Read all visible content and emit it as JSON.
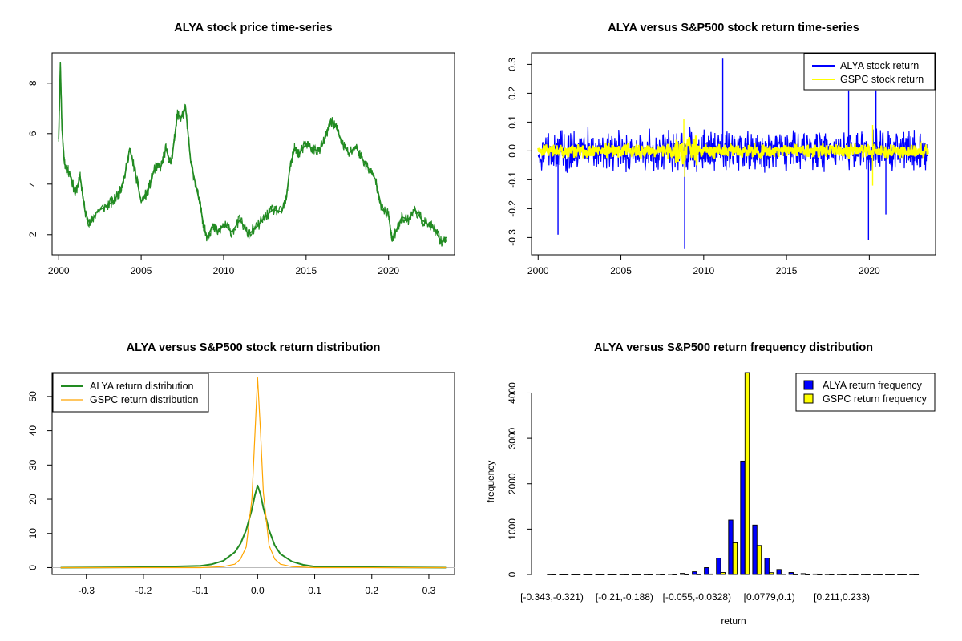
{
  "chart_data": [
    {
      "type": "line",
      "title": "ALYA stock price time-series",
      "xlabel": "",
      "ylabel": "",
      "xlim": [
        1999.6,
        2024.0
      ],
      "ylim": [
        1.2,
        9.2
      ],
      "x_ticks": [
        "2000",
        "2005",
        "2010",
        "2015",
        "2020"
      ],
      "y_ticks": [
        "2",
        "4",
        "6",
        "8"
      ],
      "series": [
        {
          "color": "#228B22",
          "x": [
            2000.0,
            2000.1,
            2000.2,
            2000.35,
            2000.5,
            2000.7,
            2001.0,
            2001.3,
            2001.6,
            2001.9,
            2002.3,
            2002.8,
            2003.3,
            2003.7,
            2004.0,
            2004.3,
            2004.6,
            2005.0,
            2005.4,
            2005.8,
            2006.2,
            2006.5,
            2006.8,
            2007.0,
            2007.2,
            2007.4,
            2007.7,
            2008.0,
            2008.3,
            2008.6,
            2008.8,
            2009.0,
            2009.3,
            2009.7,
            2010.0,
            2010.5,
            2011.0,
            2011.5,
            2012.0,
            2012.5,
            2013.0,
            2013.5,
            2013.8,
            2014.0,
            2014.3,
            2014.6,
            2015.0,
            2015.4,
            2015.8,
            2016.2,
            2016.5,
            2016.8,
            2017.2,
            2017.6,
            2018.0,
            2018.4,
            2018.8,
            2019.2,
            2019.6,
            2020.0,
            2020.2,
            2020.5,
            2020.8,
            2021.2,
            2021.6,
            2022.0,
            2022.4,
            2022.8,
            2023.2,
            2023.5
          ],
          "values": [
            5.8,
            8.8,
            6.2,
            4.8,
            4.6,
            4.4,
            3.6,
            4.3,
            2.9,
            2.4,
            2.9,
            3.1,
            3.3,
            3.7,
            4.3,
            5.4,
            4.6,
            3.3,
            3.7,
            4.6,
            4.7,
            5.4,
            4.8,
            5.7,
            6.8,
            6.6,
            7.0,
            4.9,
            4.0,
            3.1,
            2.3,
            1.9,
            2.3,
            2.1,
            2.4,
            2.1,
            2.6,
            2.0,
            2.3,
            2.7,
            3.0,
            2.9,
            3.4,
            4.6,
            5.4,
            5.2,
            5.6,
            5.4,
            5.3,
            5.9,
            6.5,
            6.3,
            5.6,
            5.2,
            5.5,
            5.0,
            4.6,
            4.2,
            3.0,
            2.8,
            1.8,
            2.2,
            2.7,
            2.6,
            3.0,
            2.6,
            2.4,
            2.2,
            1.7,
            1.9
          ]
        }
      ]
    },
    {
      "type": "line",
      "title": "ALYA versus S&P500 stock return time-series",
      "xlabel": "",
      "ylabel": "",
      "xlim": [
        1999.6,
        2024.0
      ],
      "ylim": [
        -0.36,
        0.34
      ],
      "x_ticks": [
        "2000",
        "2005",
        "2010",
        "2015",
        "2020"
      ],
      "y_ticks": [
        "-0.3",
        "-0.2",
        "-0.1",
        "0.0",
        "0.1",
        "0.2",
        "0.3"
      ],
      "legend": "top-right",
      "series": [
        {
          "name": "ALYA stock return",
          "color": "#0000FF",
          "typical_amplitude": 0.06,
          "spikes": [
            {
              "x": 2001.2,
              "y": -0.29
            },
            {
              "x": 2008.85,
              "y": -0.34
            },
            {
              "x": 2011.15,
              "y": 0.32
            },
            {
              "x": 2018.75,
              "y": 0.21
            },
            {
              "x": 2019.95,
              "y": -0.31
            },
            {
              "x": 2020.4,
              "y": 0.21
            },
            {
              "x": 2021.0,
              "y": -0.22
            }
          ]
        },
        {
          "name": "GSPC stock return",
          "color": "#FFFF00",
          "typical_amplitude": 0.02,
          "spikes": [
            {
              "x": 2008.8,
              "y": 0.11
            },
            {
              "x": 2008.85,
              "y": -0.09
            },
            {
              "x": 2020.2,
              "y": 0.09
            },
            {
              "x": 2020.2,
              "y": -0.12
            }
          ]
        }
      ]
    },
    {
      "type": "line",
      "title": "ALYA versus S&P500 stock return distribution",
      "xlabel": "",
      "ylabel": "",
      "xlim": [
        -0.36,
        0.345
      ],
      "ylim": [
        -2,
        57
      ],
      "x_ticks": [
        "-0.3",
        "-0.2",
        "-0.1",
        "0.0",
        "0.1",
        "0.2",
        "0.3"
      ],
      "y_ticks": [
        "0",
        "10",
        "20",
        "30",
        "40",
        "50"
      ],
      "legend": "top-left",
      "series": [
        {
          "name": "ALYA return distribution",
          "color": "#228B22",
          "x": [
            -0.345,
            -0.2,
            -0.1,
            -0.08,
            -0.06,
            -0.04,
            -0.03,
            -0.02,
            -0.01,
            -0.005,
            0.0,
            0.005,
            0.01,
            0.02,
            0.03,
            0.04,
            0.06,
            0.08,
            0.1,
            0.2,
            0.33
          ],
          "values": [
            0,
            0.1,
            0.5,
            1.0,
            2.0,
            4.5,
            7.0,
            11.0,
            17.0,
            21.0,
            24.0,
            21.5,
            17.5,
            11.0,
            6.5,
            4.0,
            1.8,
            0.8,
            0.3,
            0.1,
            0
          ]
        },
        {
          "name": "GSPC return distribution",
          "color": "#FFA500",
          "x": [
            -0.345,
            -0.1,
            -0.06,
            -0.04,
            -0.03,
            -0.02,
            -0.01,
            -0.005,
            0.0,
            0.005,
            0.01,
            0.02,
            0.03,
            0.04,
            0.06,
            0.1,
            0.33
          ],
          "values": [
            0,
            0,
            0.3,
            1.0,
            2.5,
            6.0,
            20.0,
            38.0,
            55.5,
            40.0,
            22.0,
            6.5,
            2.5,
            1.0,
            0.3,
            0,
            0
          ]
        }
      ]
    },
    {
      "type": "bar",
      "title": "ALYA versus S&P500 return frequency distribution",
      "xlabel": "return",
      "ylabel": "frequency",
      "ylim": [
        0,
        4450
      ],
      "y_ticks": [
        "0",
        "1000",
        "2000",
        "3000",
        "4000"
      ],
      "x_tick_labels": [
        "[-0.343,-0.321)",
        "[-0.21,-0.188)",
        "[-0.055,-0.0328)",
        "[0.0779,0.1)",
        "[0.211,0.233)"
      ],
      "legend": "top-right",
      "bin_count": 31,
      "series": [
        {
          "name": "ALYA return frequency",
          "color": "#0000FF",
          "values": [
            1,
            0,
            0,
            0,
            0,
            0,
            1,
            0,
            2,
            5,
            8,
            25,
            60,
            150,
            360,
            1200,
            2500,
            1090,
            360,
            110,
            45,
            20,
            10,
            5,
            3,
            2,
            1,
            1,
            0,
            0,
            1
          ]
        },
        {
          "name": "GSPC return frequency",
          "color": "#FFFF00",
          "values": [
            0,
            0,
            0,
            0,
            0,
            0,
            0,
            0,
            0,
            0,
            0,
            0,
            3,
            10,
            45,
            700,
            4450,
            640,
            40,
            8,
            2,
            0,
            0,
            0,
            0,
            0,
            0,
            0,
            0,
            0,
            0
          ]
        }
      ]
    }
  ]
}
